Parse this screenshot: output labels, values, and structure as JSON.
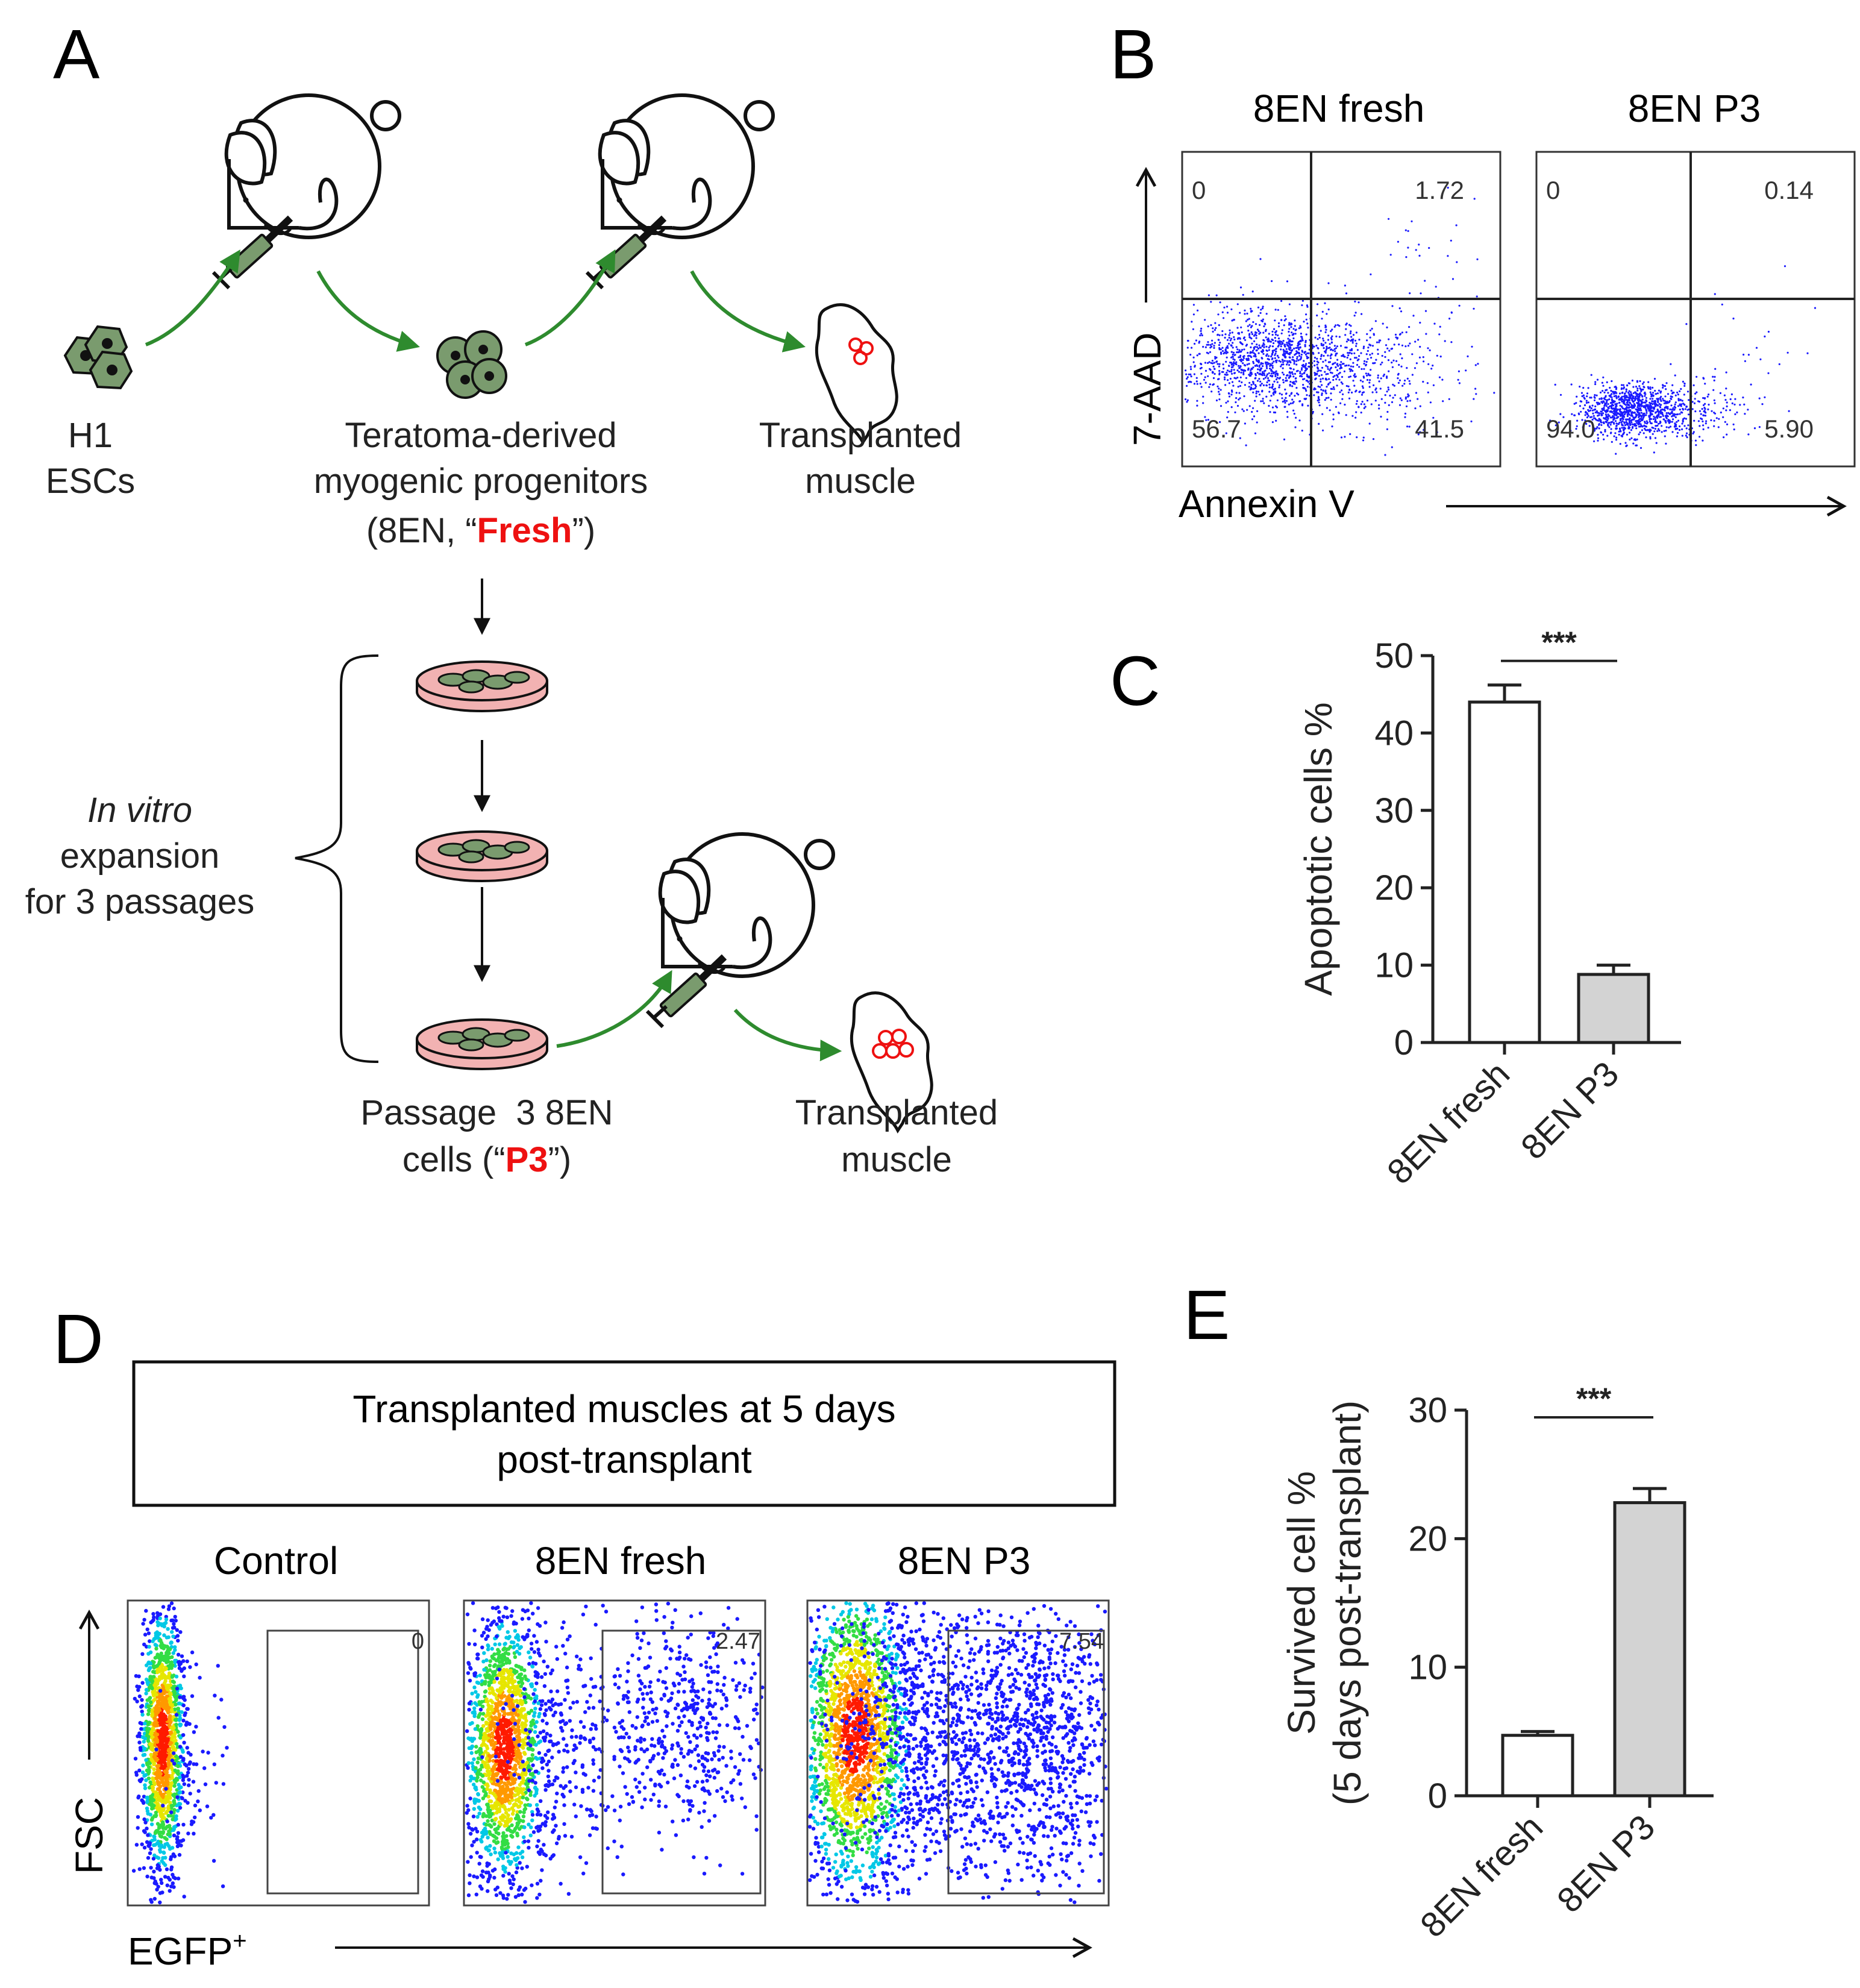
{
  "panels": {
    "a": {
      "letter": "A",
      "h1": [
        "H1",
        "ESCs"
      ],
      "teratoma": [
        "Teratoma-derived",
        "myogenic progenitors"
      ],
      "fresh_open": "(8EN, “",
      "fresh_word": "Fresh",
      "fresh_close": "”)",
      "transplanted_1": [
        "Transplanted",
        "muscle"
      ],
      "in_vitro_italic": "In vitro",
      "expansion": [
        "expansion",
        "for 3 passages"
      ],
      "passage_line": "Passage  3 8EN",
      "cells_open": "cells (“",
      "p3_word": "P3",
      "cells_close": "”)",
      "transplanted_2": [
        "Transplanted",
        "muscle"
      ]
    },
    "b": {
      "letter": "B",
      "plot_titles": [
        "8EN fresh",
        "8EN P3"
      ],
      "y_label": "7-AAD",
      "x_label": "Annexin V",
      "quadrants": [
        {
          "ul": "0",
          "ur": "1.72",
          "ll": "56.7",
          "lr": "41.5"
        },
        {
          "ul": "0",
          "ur": "0.14",
          "ll": "94.0",
          "lr": "5.90"
        }
      ]
    },
    "c": {
      "letter": "C"
    },
    "d": {
      "letter": "D",
      "box_text": [
        "Transplanted muscles at 5 days",
        "post-transplant"
      ],
      "plot_titles": [
        "Control",
        "8EN fresh",
        "8EN P3"
      ],
      "gate_values": [
        "0",
        "2.47",
        "7.54"
      ],
      "y_label": "FSC",
      "x_label": "EGFP",
      "x_label_sup": "+"
    },
    "e": {
      "letter": "E"
    }
  },
  "chart_data": [
    {
      "id": "C",
      "type": "bar",
      "categories": [
        "8EN fresh",
        "8EN P3"
      ],
      "values": [
        44,
        8.8
      ],
      "errors": [
        2.2,
        1.2
      ],
      "bar_fills": [
        "#ffffff",
        "#d3d3d3"
      ],
      "ylabel": "Apoptotic cells %",
      "ylim": [
        0,
        50
      ],
      "yticks": [
        "0",
        "10",
        "20",
        "30",
        "40",
        "50"
      ],
      "significance": "***"
    },
    {
      "id": "E",
      "type": "bar",
      "categories": [
        "8EN fresh",
        "8EN P3"
      ],
      "values": [
        4.7,
        22.8
      ],
      "errors": [
        0.3,
        1.1
      ],
      "bar_fills": [
        "#ffffff",
        "#d3d3d3"
      ],
      "ylabel": [
        "Survived cell %",
        "(5 days post-transplant)"
      ],
      "ylim": [
        0,
        30
      ],
      "yticks": [
        "0",
        "10",
        "20",
        "30"
      ],
      "significance": "***"
    }
  ],
  "colors": {
    "arrow_green": "#2e8b2e",
    "emphasis_red": "#ee1111",
    "cell_green": "#7a9b6e",
    "dish_pink": "#f2b2b2",
    "event_blue": "#1a1aff"
  }
}
